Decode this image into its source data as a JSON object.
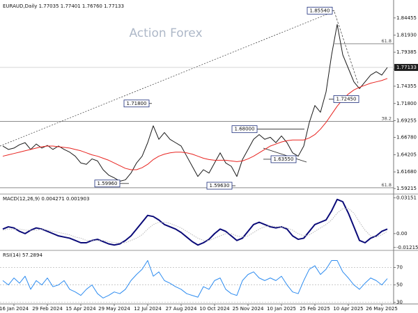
{
  "chart_data": [
    {
      "type": "line",
      "title": "EURAUD,Daily 1.77035 1.77401 1.76760 1.77133",
      "watermark": "Action Forex",
      "categories": [
        null,
        null,
        "16 Jan 2024",
        null,
        null,
        null,
        null,
        null,
        "29 Feb 2024",
        null,
        null,
        null,
        null,
        null,
        "15 Apr 2024",
        null,
        null,
        null,
        null,
        null,
        "29 May 2024",
        null,
        null,
        null,
        null,
        null,
        "12 Jul 2024",
        null,
        null,
        null,
        null,
        null,
        "27 Aug 2024",
        null,
        null,
        null,
        null,
        null,
        "10 Oct 2024",
        null,
        null,
        null,
        null,
        null,
        "25 Nov 2024",
        null,
        null,
        null,
        null,
        null,
        "10 Jan 2025",
        null,
        null,
        null,
        null,
        null,
        "25 Feb 2025",
        null,
        null,
        null,
        null,
        null,
        "10 Apr 2025",
        null,
        null,
        null,
        null,
        null,
        "26 May 2025",
        null
      ],
      "series": [
        {
          "color": "#1a1a1a",
          "values": [
            1.655,
            1.65,
            1.652,
            1.657,
            1.66,
            1.65,
            1.658,
            1.652,
            1.656,
            1.65,
            1.655,
            1.65,
            1.646,
            1.64,
            1.63,
            1.628,
            1.636,
            1.633,
            1.62,
            1.612,
            1.608,
            1.603,
            1.605,
            1.615,
            1.63,
            1.64,
            1.66,
            1.685,
            1.665,
            1.675,
            1.665,
            1.66,
            1.655,
            1.64,
            1.625,
            1.61,
            1.62,
            1.615,
            1.63,
            1.645,
            1.63,
            1.625,
            1.61,
            1.635,
            1.65,
            1.665,
            1.672,
            1.665,
            1.668,
            1.66,
            1.67,
            1.66,
            1.645,
            1.64,
            1.655,
            1.69,
            1.715,
            1.705,
            1.735,
            1.79,
            1.835,
            1.79,
            1.77,
            1.75,
            1.74,
            1.75,
            1.76,
            1.765,
            1.76,
            1.7713
          ]
        },
        {
          "color": "#e8231f",
          "values": [
            1.64,
            1.642,
            1.644,
            1.646,
            1.648,
            1.65,
            1.652,
            1.654,
            1.655,
            1.655,
            1.654,
            1.653,
            1.652,
            1.65,
            1.648,
            1.645,
            1.642,
            1.64,
            1.637,
            1.634,
            1.63,
            1.626,
            1.622,
            1.62,
            1.62,
            1.623,
            1.628,
            1.635,
            1.64,
            1.643,
            1.645,
            1.646,
            1.646,
            1.645,
            1.643,
            1.64,
            1.637,
            1.635,
            1.634,
            1.634,
            1.634,
            1.633,
            1.632,
            1.633,
            1.636,
            1.64,
            1.645,
            1.65,
            1.655,
            1.658,
            1.661,
            1.663,
            1.664,
            1.664,
            1.664,
            1.667,
            1.672,
            1.68,
            1.69,
            1.702,
            1.714,
            1.724,
            1.732,
            1.738,
            1.742,
            1.745,
            1.748,
            1.75,
            1.752,
            1.755
          ]
        }
      ],
      "ylim": [
        1.585,
        1.867
      ],
      "yticks": [
        1.84455,
        {
          "value": 1.8193,
          "label": "1.81930"
        },
        1.79385,
        {
          "value": 1.7686,
          "label": "1.76860"
        },
        1.74355,
        {
          "value": 1.718,
          "label": "1.71800"
        },
        1.69255,
        {
          "value": 1.6678,
          "label": "1.66780"
        },
        1.64205,
        {
          "value": 1.6168,
          "label": "1.61680"
        },
        1.59215
      ],
      "last_price": 1.77133,
      "levels": [
        {
          "label": "61.8",
          "value": 1.8063
        },
        {
          "label": "38.2",
          "value": 1.6915
        },
        {
          "label": "61.8",
          "value": 1.5933
        }
      ],
      "annotations": [
        {
          "value": 1.8554,
          "label": "1.85540"
        },
        {
          "value": 1.718,
          "label": "1.71800"
        },
        {
          "value": 1.68,
          "label": "1.68000"
        },
        {
          "value": 1.6355,
          "label": "1.63550"
        },
        {
          "value": 1.5996,
          "label": "1.59960"
        },
        {
          "value": 1.5963,
          "label": "1.59630"
        },
        {
          "value": 1.7245,
          "label": "1.72450"
        }
      ]
    },
    {
      "type": "line",
      "title": "MACD(12,26,9) 0.004271 0.001903",
      "series": [
        {
          "color": "#0a0a78",
          "width": 2,
          "values": [
            0.004,
            0.006,
            0.005,
            0.002,
            0.0,
            0.003,
            0.005,
            0.004,
            0.002,
            0.0,
            -0.002,
            -0.003,
            -0.004,
            -0.006,
            -0.008,
            -0.008,
            -0.006,
            -0.005,
            -0.007,
            -0.009,
            -0.01,
            -0.009,
            -0.006,
            -0.002,
            0.004,
            0.01,
            0.016,
            0.015,
            0.012,
            0.008,
            0.006,
            0.004,
            0.001,
            -0.003,
            -0.007,
            -0.01,
            -0.008,
            -0.005,
            0.0,
            0.004,
            0.002,
            -0.002,
            -0.006,
            -0.004,
            0.002,
            0.008,
            0.01,
            0.008,
            0.006,
            0.005,
            0.006,
            0.004,
            -0.002,
            -0.005,
            -0.004,
            0.002,
            0.008,
            0.01,
            0.012,
            0.02,
            0.03,
            0.028,
            0.018,
            0.006,
            -0.006,
            -0.008,
            -0.004,
            -0.002,
            0.002,
            0.004
          ]
        },
        {
          "color": "#b8b8b8",
          "width": 1,
          "dash": "dotted",
          "values": [
            0.003,
            0.004,
            0.004,
            0.004,
            0.003,
            0.003,
            0.003,
            0.004,
            0.003,
            0.002,
            0.001,
            0.0,
            -0.001,
            -0.003,
            -0.004,
            -0.006,
            -0.006,
            -0.006,
            -0.006,
            -0.007,
            -0.008,
            -0.008,
            -0.008,
            -0.006,
            -0.004,
            -0.001,
            0.004,
            0.008,
            0.01,
            0.01,
            0.009,
            0.007,
            0.005,
            0.002,
            -0.001,
            -0.004,
            -0.006,
            -0.006,
            -0.004,
            -0.002,
            0.0,
            0.0,
            -0.002,
            -0.003,
            -0.002,
            0.001,
            0.004,
            0.006,
            0.007,
            0.006,
            0.006,
            0.005,
            0.003,
            0.0,
            -0.002,
            -0.001,
            0.002,
            0.005,
            0.008,
            0.012,
            0.018,
            0.022,
            0.022,
            0.018,
            0.01,
            0.003,
            -0.002,
            -0.003,
            -0.001,
            0.002
          ]
        }
      ],
      "ylim": [
        -0.0135,
        0.0335
      ],
      "yticks": [
        0.03151,
        {
          "value": 0,
          "label": "0.00"
        },
        -0.012158
      ]
    },
    {
      "type": "line",
      "title": "RSI(14) 57.2894",
      "series": [
        {
          "color": "#2d8cf0",
          "width": 1,
          "values": [
            55,
            50,
            58,
            52,
            60,
            45,
            55,
            50,
            58,
            48,
            50,
            55,
            45,
            42,
            38,
            45,
            50,
            40,
            35,
            38,
            42,
            40,
            45,
            55,
            62,
            68,
            78,
            60,
            65,
            55,
            52,
            48,
            45,
            40,
            38,
            36,
            48,
            45,
            55,
            58,
            45,
            40,
            38,
            55,
            62,
            65,
            58,
            55,
            58,
            55,
            60,
            50,
            42,
            40,
            55,
            68,
            72,
            62,
            68,
            78,
            78,
            65,
            58,
            50,
            45,
            52,
            58,
            55,
            50,
            57.29
          ]
        }
      ],
      "ylim": [
        29,
        88
      ],
      "yticks": [
        70,
        50,
        30
      ],
      "grid": true
    }
  ]
}
